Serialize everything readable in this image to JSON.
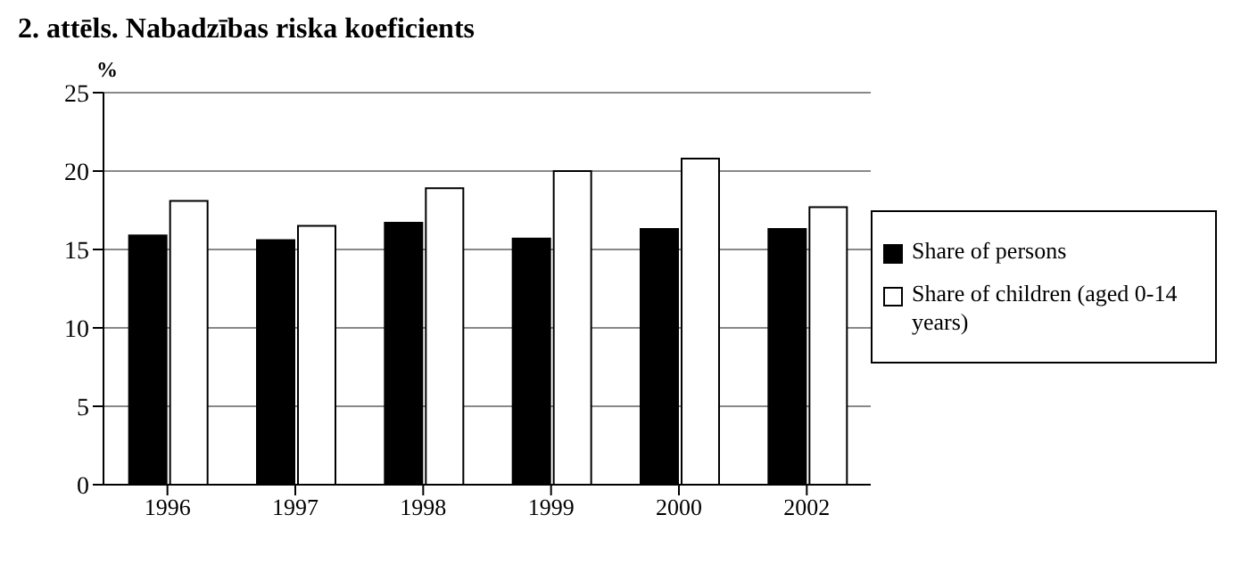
{
  "chart_data": {
    "type": "bar",
    "title": "2. attēls. Nabadzības riska koeficients",
    "ylabel": "%",
    "categories": [
      "1996",
      "1997",
      "1998",
      "1999",
      "2000",
      "2002"
    ],
    "series": [
      {
        "name": "Share of persons",
        "color": "#000000",
        "values": [
          15.9,
          15.6,
          16.7,
          15.7,
          16.3,
          16.3
        ]
      },
      {
        "name": "Share of children (aged 0-14 years)",
        "color": "#ffffff",
        "values": [
          18.1,
          16.5,
          18.9,
          20.0,
          20.8,
          17.7
        ]
      }
    ],
    "ylim": [
      0,
      25
    ],
    "yticks": [
      0,
      5,
      10,
      15,
      20,
      25
    ],
    "grid": "y",
    "legend": "right"
  }
}
